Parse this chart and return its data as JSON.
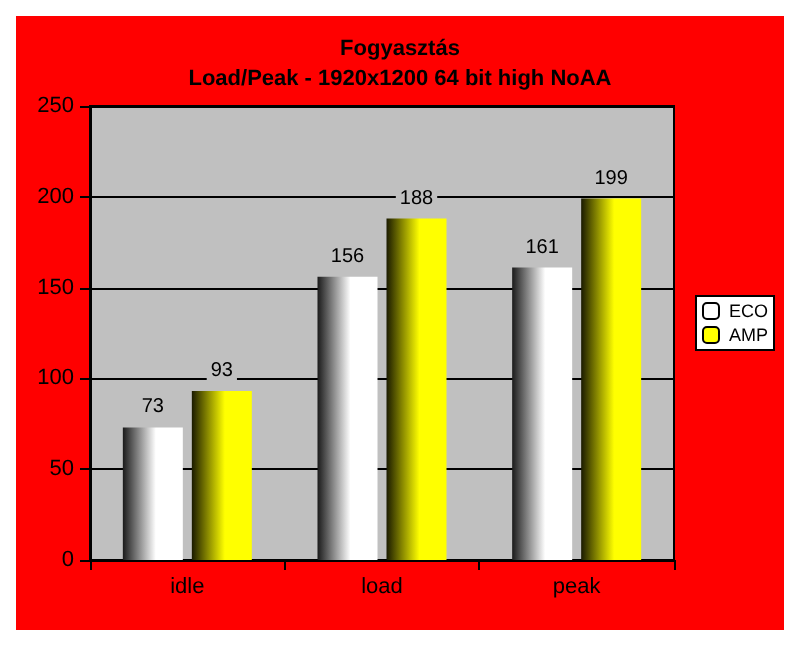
{
  "chart_data": {
    "type": "bar",
    "title": "Fogyasztás",
    "subtitle": "Load/Peak - 1920x1200 64 bit high NoAA",
    "categories": [
      "idle",
      "load",
      "peak"
    ],
    "series": [
      {
        "name": "ECO",
        "color": "#ffffff",
        "values": [
          73,
          156,
          161
        ]
      },
      {
        "name": "AMP",
        "color": "#ffff00",
        "values": [
          93,
          188,
          199
        ]
      }
    ],
    "ylim": [
      0,
      250
    ],
    "yticks": [
      0,
      50,
      100,
      150,
      200,
      250
    ],
    "grid": "y",
    "legend": "right",
    "data_labels": true
  }
}
